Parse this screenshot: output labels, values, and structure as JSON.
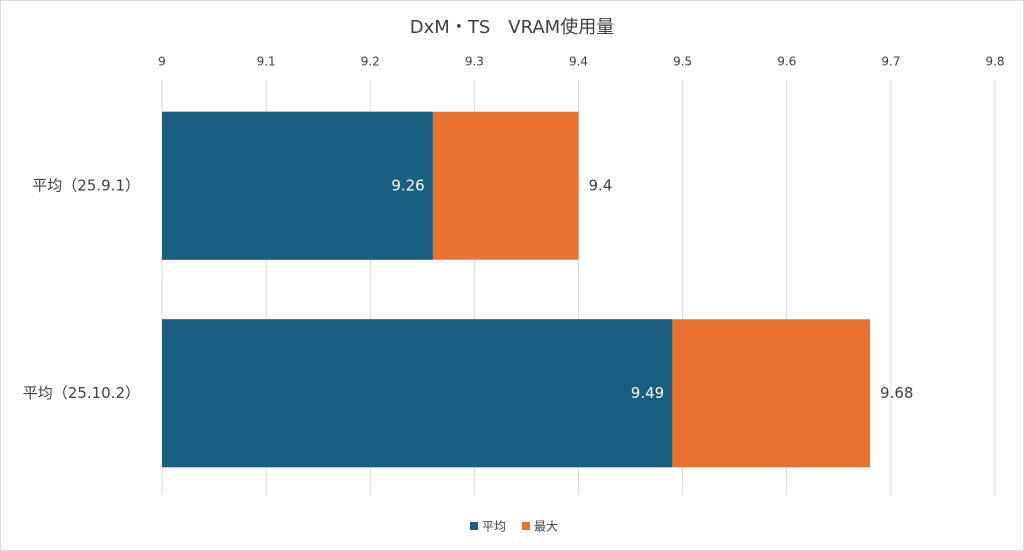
{
  "chart_data": {
    "type": "bar",
    "orientation": "horizontal",
    "overlap": true,
    "title": "DxM・TS　VRAM使用量",
    "categories": [
      "平均（25.9.1）",
      "平均（25.10.2）"
    ],
    "series": [
      {
        "name": "平均",
        "color": "#1a5e80",
        "values": [
          9.26,
          9.49
        ]
      },
      {
        "name": "最大",
        "color": "#e97132",
        "values": [
          9.4,
          9.68
        ]
      }
    ],
    "xlim": [
      9,
      9.8
    ],
    "xticks": [
      9,
      9.1,
      9.2,
      9.3,
      9.4,
      9.5,
      9.6,
      9.7,
      9.8
    ],
    "grid": true,
    "legend": "bottom"
  }
}
